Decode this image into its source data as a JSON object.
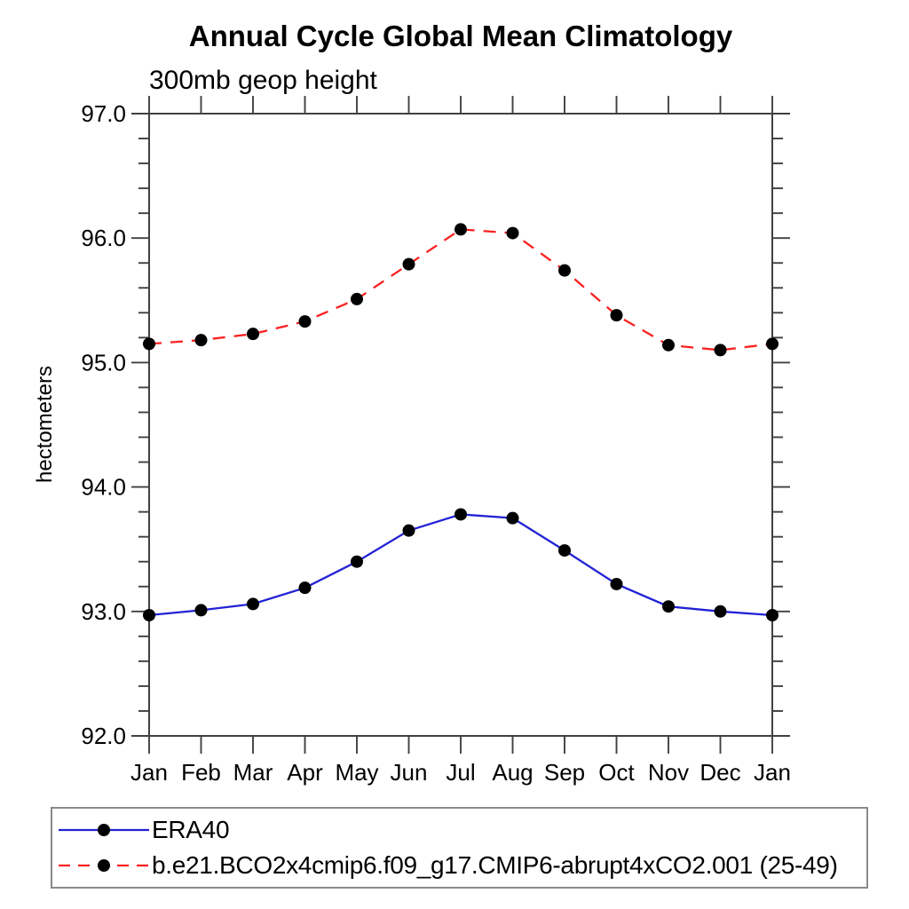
{
  "page": {
    "background": "#ffffff"
  },
  "chart_data": {
    "type": "line",
    "title": "Annual Cycle Global Mean Climatology",
    "subtitle": "300mb geop height",
    "ylabel": "hectometers",
    "xlabel": "",
    "categories": [
      "Jan",
      "Feb",
      "Mar",
      "Apr",
      "May",
      "Jun",
      "Jul",
      "Aug",
      "Sep",
      "Oct",
      "Nov",
      "Dec",
      "Jan"
    ],
    "y_tick_labels": [
      "97.0",
      "96.0",
      "95.0",
      "94.0",
      "93.0",
      "92.0"
    ],
    "ylim": [
      92.0,
      97.0
    ],
    "y_major_step": 1.0,
    "y_minor_step": 0.2,
    "grid": false,
    "legend_position": "bottom-left",
    "axis_color": "#404040",
    "text_color": "#000000",
    "series": [
      {
        "name": "ERA40",
        "color": "#2222d6",
        "line_style": "solid",
        "marker": "filled-circle",
        "marker_color": "#000000",
        "values": [
          92.97,
          93.01,
          93.06,
          93.19,
          93.4,
          93.65,
          93.78,
          93.75,
          93.49,
          93.22,
          93.04,
          93.0,
          92.97
        ]
      },
      {
        "name": "b.e21.BCO2x4cmip6.f09_g17.CMIP6-abrupt4xCO2.001 (25-49)",
        "color": "#fb2020",
        "line_style": "dashed",
        "marker": "filled-circle",
        "marker_color": "#000000",
        "values": [
          95.15,
          95.18,
          95.23,
          95.33,
          95.51,
          95.79,
          96.07,
          96.04,
          95.74,
          95.38,
          95.14,
          95.1,
          95.15
        ]
      }
    ]
  }
}
